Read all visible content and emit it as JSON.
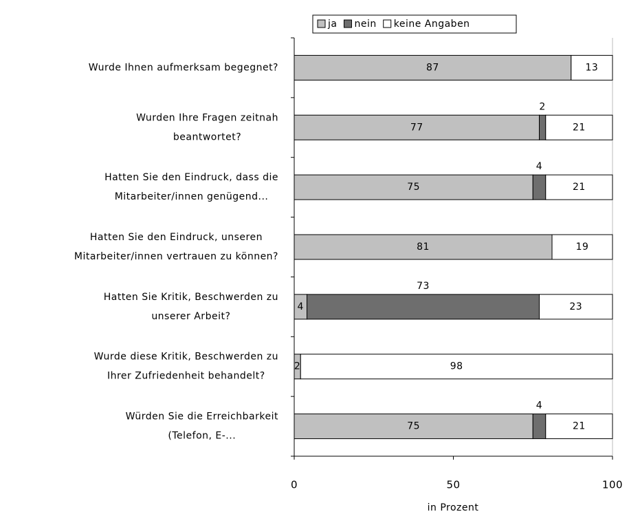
{
  "chart_data": {
    "type": "stacked-bar-horizontal",
    "categories": [
      "Wurde Ihnen aufmerksam begegnet?",
      "Wurden Ihre Fragen zeitnah\nbeantwortet?",
      "Hatten Sie den Eindruck, dass die\nMitarbeiter/innen genügend...",
      "Hatten Sie den Eindruck, unseren\nMitarbeiter/innen vertrauen zu können?",
      "Hatten Sie Kritik, Beschwerden zu\nunserer Arbeit?",
      "Wurde diese Kritik, Beschwerden zu\nIhrer Zufriedenheit behandelt?",
      "Würden Sie die Erreichbarkeit\n(Telefon, E-..."
    ],
    "series": [
      {
        "name": "ja",
        "color": "#c0c0c0",
        "values": [
          87,
          77,
          75,
          81,
          4,
          2,
          75
        ]
      },
      {
        "name": "nein",
        "color": "#6e6e6e",
        "values": [
          null,
          2,
          4,
          null,
          73,
          null,
          4
        ]
      },
      {
        "name": "keine Angaben",
        "color": "#ffffff",
        "values": [
          13,
          21,
          21,
          19,
          23,
          98,
          21
        ]
      }
    ],
    "xlim": [
      0,
      100
    ],
    "xticks": [
      0,
      50,
      100
    ],
    "xlabel": "in Prozent",
    "legend": "top"
  }
}
